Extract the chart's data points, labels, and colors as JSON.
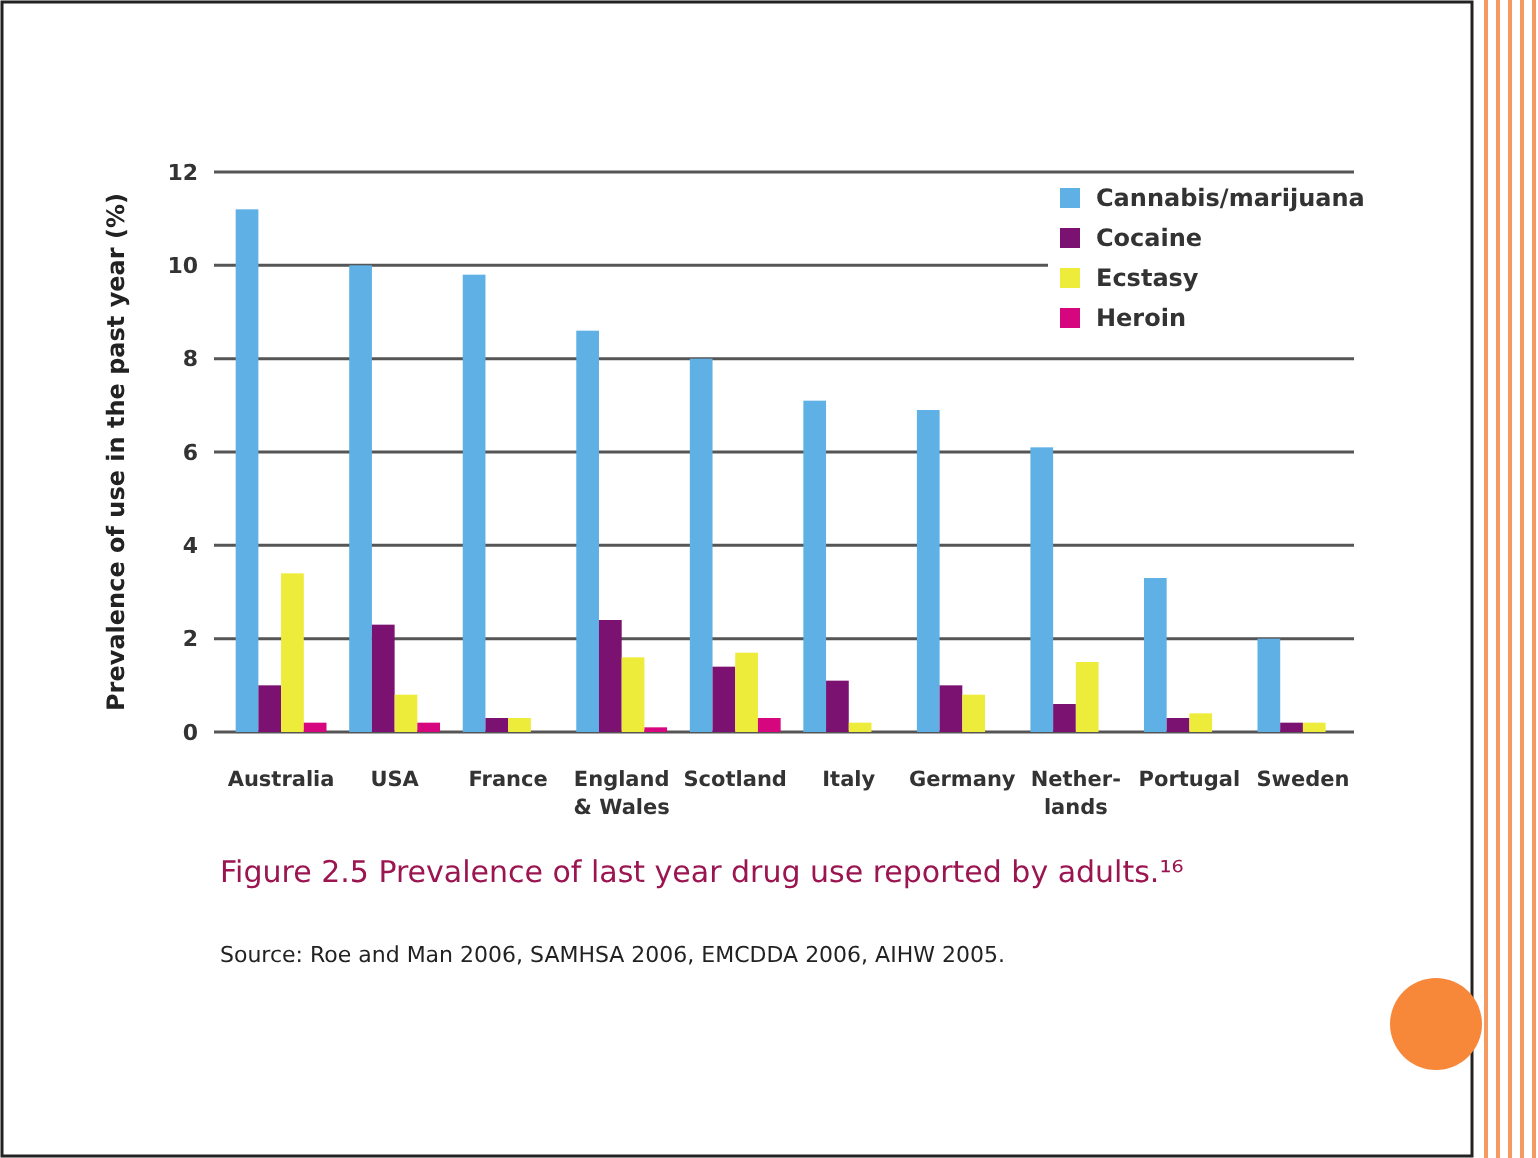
{
  "chart_data": {
    "type": "bar",
    "title": "Figure 2.5  Prevalence of last year drug use reported by adults.¹⁶",
    "ylabel": "Prevalence of use in the past year (%)",
    "annotations": [
      "Source: Roe and Man 2006, SAMHSA 2006, EMCDDA 2006, AIHW 2005."
    ],
    "categories": [
      "Australia",
      "USA",
      "France",
      "England & Wales",
      "Scotland",
      "Italy",
      "Germany",
      "Nether-lands",
      "Portugal",
      "Sweden"
    ],
    "series": [
      {
        "name": "Cannabis/marijuana",
        "color": "#5eb0e5",
        "values": [
          11.2,
          10.0,
          9.8,
          8.6,
          8.0,
          7.1,
          6.9,
          6.1,
          3.3,
          2.0
        ]
      },
      {
        "name": "Cocaine",
        "color": "#7b1170",
        "values": [
          1.0,
          2.3,
          0.3,
          2.4,
          1.4,
          1.1,
          1.0,
          0.6,
          0.3,
          0.2
        ]
      },
      {
        "name": "Ecstasy",
        "color": "#eeec3a",
        "values": [
          3.4,
          0.8,
          0.3,
          1.6,
          1.7,
          0.2,
          0.8,
          1.5,
          0.4,
          0.2
        ]
      },
      {
        "name": "Heroin",
        "color": "#d6067f",
        "values": [
          0.2,
          0.2,
          null,
          0.1,
          0.3,
          null,
          null,
          null,
          null,
          null
        ]
      }
    ],
    "ylim": [
      0,
      12
    ],
    "yticks": [
      0,
      2,
      4,
      6,
      8,
      10,
      12
    ],
    "grid": "y",
    "legend": "top right"
  }
}
